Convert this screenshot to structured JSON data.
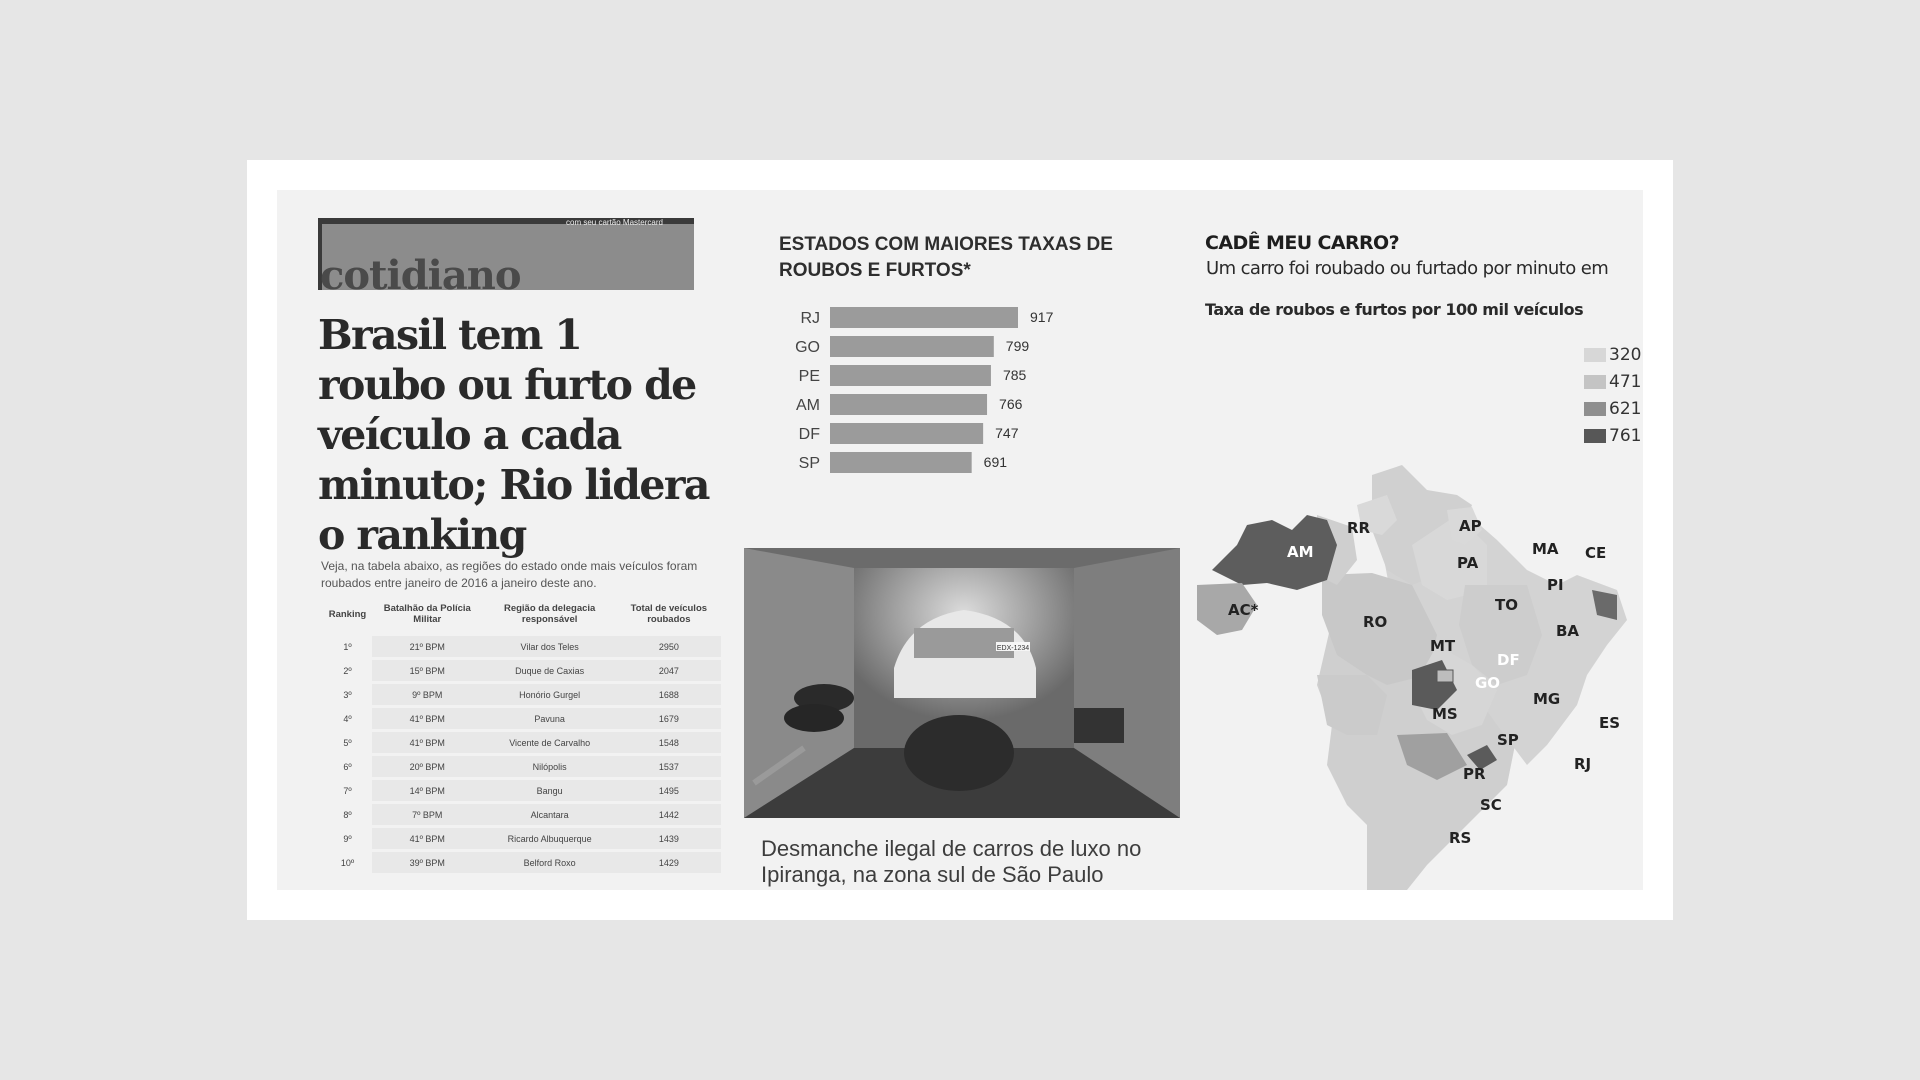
{
  "article": {
    "section": "cotidiano",
    "promo": "com seu cartão Mastercard",
    "headline": "Brasil tem 1 roubo ou furto de veículo a cada minuto; Rio lidera o ranking",
    "intro": "Veja, na tabela abaixo, as regiões do estado onde mais veículos foram roubados entre janeiro de 2016 a janeiro deste ano."
  },
  "ranking_table": {
    "headers": [
      "Ranking",
      "Batalhão da Polícia Militar",
      "Região da delegacia responsável",
      "Total de veículos roubados"
    ],
    "rows": [
      [
        "1º",
        "21º BPM",
        "Vilar dos Teles",
        "2950"
      ],
      [
        "2º",
        "15º BPM",
        "Duque de Caxias",
        "2047"
      ],
      [
        "3º",
        "9º BPM",
        "Honório Gurgel",
        "1688"
      ],
      [
        "4º",
        "41º BPM",
        "Pavuna",
        "1679"
      ],
      [
        "5º",
        "41º BPM",
        "Vicente de Carvalho",
        "1548"
      ],
      [
        "6º",
        "20º BPM",
        "Nilópolis",
        "1537"
      ],
      [
        "7º",
        "14º BPM",
        "Bangu",
        "1495"
      ],
      [
        "8º",
        "7º BPM",
        "Alcantara",
        "1442"
      ],
      [
        "9º",
        "41º BPM",
        "Ricardo Albuquerque",
        "1439"
      ],
      [
        "10º",
        "39º BPM",
        "Belford Roxo",
        "1429"
      ]
    ]
  },
  "chart_data": {
    "type": "bar",
    "orientation": "horizontal",
    "title": "ESTADOS COM MAIORES TAXAS DE ROUBOS E FURTOS*",
    "categories": [
      "RJ",
      "GO",
      "PE",
      "AM",
      "DF",
      "SP"
    ],
    "values": [
      917,
      799,
      785,
      766,
      747,
      691
    ],
    "bar_color": "#9b9b9b",
    "xlim": [
      0,
      917
    ],
    "grid": false
  },
  "photo": {
    "caption": "Desmanche ilegal de carros de luxo no Ipiranga, na zona sul de São Paulo",
    "plate": "EDX-1234"
  },
  "map": {
    "title": "CADÊ MEU CARRO?",
    "subtitle": "Um carro foi roubado ou furtado por minuto em",
    "rate_label": "Taxa de roubos e furtos por 100 mil veículos",
    "legend": [
      {
        "value": "320",
        "color": "#d7d7d7"
      },
      {
        "value": "471",
        "color": "#c4c4c4"
      },
      {
        "value": "621",
        "color": "#8f8f8f"
      },
      {
        "value": "761",
        "color": "#575757"
      }
    ],
    "state_labels": {
      "RR": "RR",
      "AP": "AP",
      "AM": "AM",
      "PA": "PA",
      "MA": "MA",
      "CE": "CE",
      "PI": "PI",
      "AC": "AC*",
      "RO": "RO",
      "TO": "TO",
      "MT": "MT",
      "BA": "BA",
      "DF": "DF",
      "GO": "GO",
      "MG": "MG",
      "MS": "MS",
      "ES": "ES",
      "SP": "SP",
      "RJ": "RJ",
      "PR": "PR",
      "SC": "SC",
      "RS": "RS"
    }
  }
}
